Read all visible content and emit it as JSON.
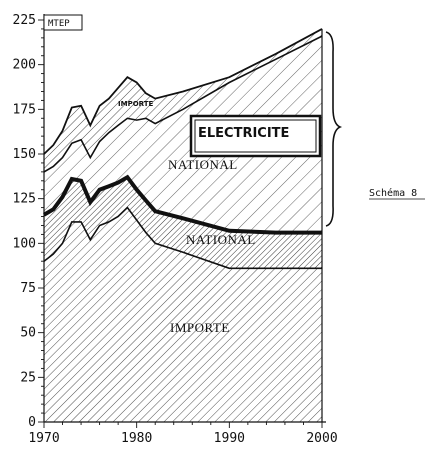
{
  "chart_data": {
    "type": "area",
    "ylabel": "MTEP",
    "ylim": [
      0,
      225
    ],
    "xlim": [
      1970,
      2000
    ],
    "y_ticks": [
      0,
      25,
      50,
      75,
      100,
      125,
      150,
      175,
      200,
      225
    ],
    "x_ticks": [
      1970,
      1980,
      1990,
      2000
    ],
    "grid": false,
    "side_note": "Schéma 8",
    "series": [
      {
        "name": "IMPORTE",
        "x": [
          1970,
          1971,
          1972,
          1973,
          1974,
          1975,
          1976,
          1977,
          1978,
          1979,
          1980,
          1981,
          1982,
          1985,
          1990,
          1995,
          2000
        ],
        "values": [
          90,
          94,
          100,
          112,
          112,
          102,
          110,
          112,
          115,
          120,
          113,
          106,
          100,
          95,
          86,
          86,
          86
        ]
      },
      {
        "name": "NATIONAL",
        "x": [
          1970,
          1971,
          1972,
          1973,
          1974,
          1975,
          1976,
          1977,
          1978,
          1979,
          1980,
          1981,
          1982,
          1985,
          1990,
          1995,
          2000
        ],
        "values": [
          116,
          119,
          126,
          136,
          135,
          123,
          130,
          132,
          134,
          137,
          130,
          124,
          118,
          114,
          107,
          106,
          106
        ]
      },
      {
        "name": "NATIONAL",
        "x": [
          1970,
          1971,
          1972,
          1973,
          1974,
          1975,
          1976,
          1977,
          1978,
          1979,
          1980,
          1981,
          1982,
          1985,
          1990,
          1995,
          2000
        ],
        "values": [
          140,
          143,
          148,
          156,
          158,
          148,
          157,
          162,
          166,
          170,
          169,
          170,
          167,
          175,
          190,
          203,
          216
        ]
      },
      {
        "name": "IMPORTE",
        "x": [
          1970,
          1971,
          1972,
          1973,
          1974,
          1975,
          1976,
          1977,
          1978,
          1979,
          1980,
          1981,
          1982,
          1985,
          1990,
          1995,
          2000
        ],
        "values": [
          150,
          155,
          163,
          176,
          177,
          166,
          177,
          181,
          187,
          193,
          190,
          184,
          181,
          185,
          193,
          206,
          220
        ]
      }
    ],
    "annotations": {
      "electricite": "ELECTRICITE",
      "label_import_top": "IMPORTE",
      "label_national_upper": "NATIONAL",
      "label_national_lower": "NATIONAL",
      "label_import_bottom": "IMPORTE"
    }
  }
}
